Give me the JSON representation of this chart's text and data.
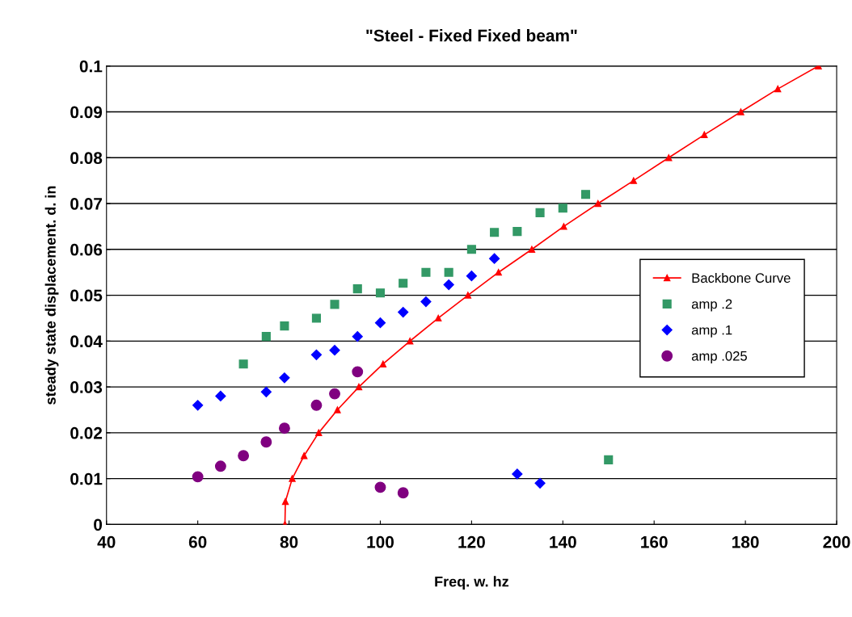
{
  "chart_data": {
    "type": "scatter",
    "title": "\"Steel - Fixed Fixed beam\"",
    "xlabel": "Freq. w. hz",
    "ylabel": "steady state displacement. d. in",
    "xlim": [
      40,
      200
    ],
    "xticks": [
      40,
      60,
      80,
      100,
      120,
      140,
      160,
      180,
      200
    ],
    "ylim": [
      0,
      0.1
    ],
    "yticks": [
      0,
      0.01,
      0.02,
      0.03,
      0.04,
      0.05,
      0.06,
      0.07,
      0.08,
      0.09,
      0.1
    ],
    "grid": "y",
    "legend": "right",
    "series": [
      {
        "name": "Backbone Curve",
        "type": "line",
        "marker": "triangle",
        "color": "#ff0000",
        "x": [
          79.1,
          79.2,
          80.7,
          83.3,
          86.5,
          90.6,
          95.3,
          100.6,
          106.5,
          112.7,
          119.2,
          125.9,
          133.2,
          140.2,
          147.7,
          155.5,
          163.2,
          171.0,
          179.0,
          187.1,
          196.0
        ],
        "values": [
          0,
          0.005,
          0.01,
          0.015,
          0.02,
          0.025,
          0.03,
          0.035,
          0.04,
          0.045,
          0.05,
          0.055,
          0.06,
          0.065,
          0.07,
          0.075,
          0.08,
          0.085,
          0.09,
          0.095,
          0.1
        ]
      },
      {
        "name": "amp .2",
        "marker": "square",
        "color": "#339966",
        "x": [
          70,
          75,
          79,
          86,
          90,
          95,
          100,
          105,
          110,
          115,
          120,
          125,
          130,
          135,
          140,
          145,
          150
        ],
        "values": [
          0.035,
          0.041,
          0.0433,
          0.045,
          0.048,
          0.0514,
          0.0505,
          0.0526,
          0.055,
          0.055,
          0.06,
          0.0637,
          0.0639,
          0.068,
          0.069,
          0.072,
          0.0141
        ]
      },
      {
        "name": "amp .1",
        "marker": "diamond",
        "color": "#0000ff",
        "x": [
          60,
          65,
          75,
          79,
          86,
          90,
          95,
          100,
          105,
          110,
          115,
          120,
          125,
          130,
          135
        ],
        "values": [
          0.026,
          0.028,
          0.0289,
          0.032,
          0.037,
          0.038,
          0.041,
          0.044,
          0.0463,
          0.0486,
          0.0523,
          0.0542,
          0.058,
          0.011,
          0.009
        ]
      },
      {
        "name": "amp .025",
        "marker": "circle",
        "color": "#800080",
        "x": [
          60,
          65,
          70,
          75,
          79,
          86,
          90,
          95,
          100,
          105
        ],
        "values": [
          0.0104,
          0.0127,
          0.015,
          0.018,
          0.021,
          0.026,
          0.0285,
          0.0333,
          0.0081,
          0.0069
        ]
      }
    ]
  }
}
